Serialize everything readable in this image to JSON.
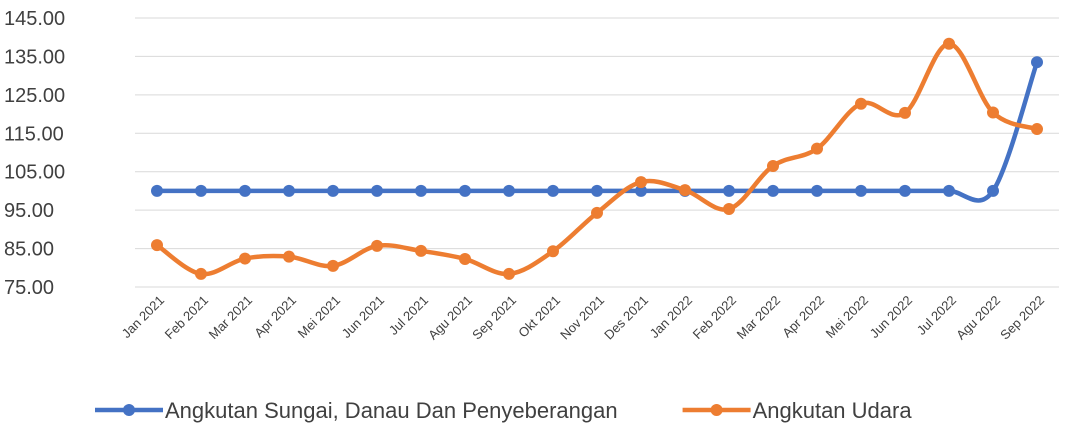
{
  "chart_data": {
    "type": "line",
    "categories": [
      "Jan 2021",
      "Feb 2021",
      "Mar 2021",
      "Apr 2021",
      "Mei 2021",
      "Jun 2021",
      "Jul 2021",
      "Agu 2021",
      "Sep 2021",
      "Okt 2021",
      "Nov 2021",
      "Des 2021",
      "Jan 2022",
      "Feb 2022",
      "Mar 2022",
      "Apr 2022",
      "Mei 2022",
      "Jun 2022",
      "Jul 2022",
      "Agu 2022",
      "Sep 2022"
    ],
    "series": [
      {
        "name": "Angkutan Sungai, Danau Dan Penyeberangan",
        "color": "#4472c4",
        "values": [
          100,
          100,
          100,
          100,
          100,
          100,
          100,
          100,
          100,
          100,
          100,
          100,
          100,
          100,
          100,
          100,
          100,
          100,
          100,
          100,
          133.5
        ]
      },
      {
        "name": "Angkutan Udara",
        "color": "#ed7d31",
        "values": [
          85.9,
          78.4,
          82.4,
          82.9,
          80.5,
          85.7,
          84.4,
          82.3,
          78.4,
          84.3,
          94.3,
          102.3,
          100.2,
          95.3,
          106.5,
          111,
          122.7,
          120.3,
          138.3,
          120.4,
          116.1
        ]
      }
    ],
    "ylim": [
      75,
      145
    ],
    "yticks": [
      {
        "value": 75,
        "label": "75.00"
      },
      {
        "value": 85,
        "label": "85.00"
      },
      {
        "value": 95,
        "label": "95.00"
      },
      {
        "value": 105,
        "label": "105.00"
      },
      {
        "value": 115,
        "label": "115.00"
      },
      {
        "value": 125,
        "label": "125.00"
      },
      {
        "value": 135,
        "label": "135.00"
      },
      {
        "value": 145,
        "label": "145.00"
      }
    ],
    "grid": true,
    "legend": "bottom"
  }
}
